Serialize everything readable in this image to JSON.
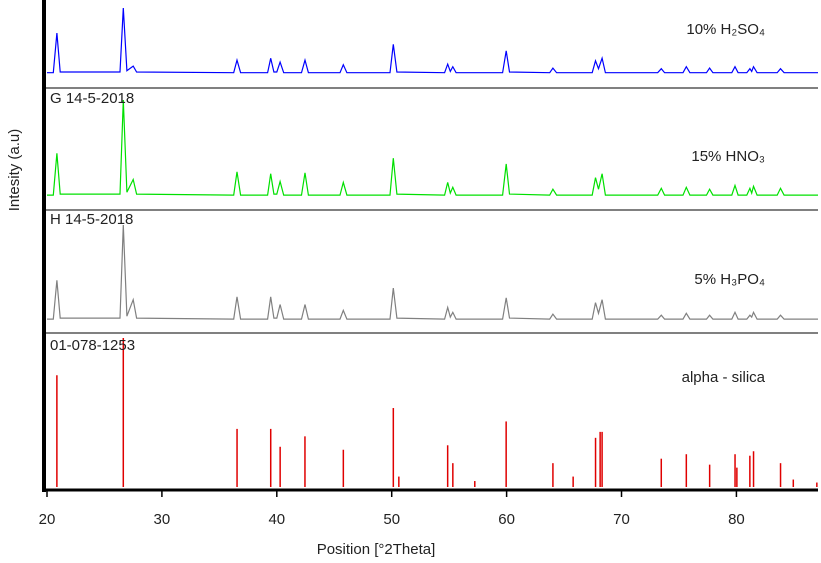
{
  "chart_data": [
    {
      "type": "line",
      "ylabel": "Intesity (a.u)",
      "xlim": [
        20,
        87.1
      ],
      "ylim": [
        0,
        100
      ],
      "x": [
        20,
        20.55,
        20.86,
        21.15,
        26.35,
        26.64,
        26.95,
        27.5,
        27.8,
        36.25,
        36.54,
        36.85,
        39.2,
        39.47,
        39.75,
        40.0,
        40.29,
        40.6,
        42.15,
        42.45,
        42.75,
        45.5,
        45.79,
        46.1,
        49.85,
        50.14,
        50.45,
        54.6,
        54.87,
        55.1,
        55.32,
        55.6,
        59.65,
        59.96,
        60.25,
        63.75,
        64.03,
        64.35,
        67.45,
        67.74,
        68.0,
        68.31,
        68.6,
        73.15,
        73.46,
        73.75,
        75.35,
        75.64,
        75.95,
        77.4,
        77.67,
        77.95,
        79.6,
        79.88,
        80.15,
        80.9,
        81.17,
        81.33,
        81.49,
        81.8,
        83.55,
        83.84,
        84.15,
        87.1
      ],
      "series": [
        {
          "name": "10% H₂SO₄",
          "color": "#0000ff",
          "values": [
            2,
            2,
            62,
            3,
            3,
            100,
            5,
            12,
            3,
            2,
            21,
            2,
            2,
            24,
            3,
            3,
            18,
            2,
            2,
            21,
            2,
            2,
            14,
            2,
            2,
            45,
            3,
            2,
            15,
            4,
            11,
            2,
            2,
            35,
            3,
            2,
            9,
            2,
            2,
            20,
            8,
            24,
            2,
            2,
            8,
            2,
            2,
            11,
            2,
            2,
            9,
            2,
            2,
            11,
            2,
            2,
            8,
            4,
            11,
            2,
            2,
            8,
            2,
            2
          ]
        }
      ]
    },
    {
      "type": "line",
      "label": "G 14-5-2018",
      "xlim": [
        20,
        87.1
      ],
      "ylim": [
        0,
        100
      ],
      "x": [
        20,
        20.55,
        20.86,
        21.15,
        26.35,
        26.64,
        26.95,
        27.5,
        27.8,
        36.25,
        36.54,
        36.85,
        39.2,
        39.47,
        39.75,
        40.0,
        40.29,
        40.6,
        42.15,
        42.45,
        42.75,
        45.5,
        45.79,
        46.1,
        49.85,
        50.14,
        50.45,
        54.6,
        54.87,
        55.1,
        55.32,
        55.6,
        59.65,
        59.96,
        60.25,
        63.75,
        64.03,
        64.35,
        67.45,
        67.74,
        68.0,
        68.31,
        68.6,
        73.15,
        73.46,
        73.75,
        75.35,
        75.64,
        75.95,
        77.4,
        77.67,
        77.95,
        79.6,
        79.88,
        80.15,
        80.9,
        81.17,
        81.33,
        81.49,
        81.8,
        83.55,
        83.84,
        84.15,
        87.1
      ],
      "series": [
        {
          "name": "15% HNO₃",
          "color": "#00e000",
          "values": [
            2,
            2,
            45,
            3,
            3,
            100,
            5,
            18,
            3,
            2,
            26,
            2,
            2,
            24,
            3,
            3,
            16,
            2,
            2,
            25,
            2,
            2,
            15,
            2,
            2,
            40,
            3,
            2,
            15,
            4,
            10,
            2,
            2,
            34,
            3,
            2,
            8,
            2,
            2,
            20,
            8,
            24,
            2,
            2,
            9,
            2,
            2,
            10,
            2,
            2,
            8,
            2,
            2,
            12,
            2,
            2,
            9,
            4,
            11,
            2,
            2,
            9,
            2,
            2
          ]
        }
      ]
    },
    {
      "type": "line",
      "label": "H 14-5-2018",
      "xlim": [
        20,
        87.1
      ],
      "ylim": [
        0,
        100
      ],
      "x": [
        20,
        20.55,
        20.86,
        21.15,
        26.35,
        26.64,
        26.95,
        27.5,
        27.8,
        36.25,
        36.54,
        36.85,
        39.2,
        39.47,
        39.75,
        40.0,
        40.29,
        40.6,
        42.15,
        42.45,
        42.75,
        45.5,
        45.79,
        46.1,
        49.85,
        50.14,
        50.45,
        54.6,
        54.87,
        55.1,
        55.32,
        55.6,
        59.65,
        59.96,
        60.25,
        63.75,
        64.03,
        64.35,
        67.45,
        67.74,
        68.0,
        68.31,
        68.6,
        73.15,
        73.46,
        73.75,
        75.35,
        75.64,
        75.95,
        77.4,
        77.67,
        77.95,
        79.6,
        79.88,
        80.15,
        80.9,
        81.17,
        81.33,
        81.49,
        81.8,
        83.55,
        83.84,
        84.15,
        87.1
      ],
      "series": [
        {
          "name": "5% H₃PO₄",
          "color": "#808080",
          "values": [
            3,
            3,
            43,
            4,
            4,
            100,
            6,
            23,
            4,
            3,
            26,
            3,
            3,
            26,
            4,
            4,
            18,
            3,
            3,
            18,
            3,
            3,
            12,
            3,
            3,
            35,
            4,
            3,
            15,
            5,
            10,
            3,
            3,
            25,
            4,
            3,
            8,
            3,
            3,
            20,
            9,
            23,
            3,
            3,
            7,
            3,
            3,
            9,
            3,
            3,
            7,
            3,
            3,
            10,
            3,
            3,
            7,
            5,
            10,
            3,
            3,
            7,
            3,
            3
          ]
        }
      ]
    },
    {
      "type": "bar",
      "label": "01-078-1253",
      "xlabel": "Position [°2Theta]",
      "xlim": [
        20,
        87.1
      ],
      "ylim": [
        0,
        100
      ],
      "xticks": [
        20,
        30,
        40,
        50,
        60,
        70,
        80
      ],
      "x": [
        20.86,
        26.64,
        36.54,
        39.47,
        40.29,
        42.45,
        45.79,
        50.14,
        50.62,
        54.87,
        55.32,
        57.23,
        59.96,
        64.03,
        65.79,
        67.74,
        68.14,
        68.31,
        73.46,
        75.64,
        77.67,
        79.88,
        80.04,
        81.17,
        81.49,
        83.84,
        84.95,
        87.0
      ],
      "series": [
        {
          "name": "alpha - silica",
          "color": "#e00000",
          "values": [
            75,
            100,
            39,
            39,
            27,
            34,
            25,
            53,
            7,
            28,
            16,
            4,
            44,
            16,
            7,
            33,
            37,
            37,
            19,
            22,
            15,
            22,
            13,
            21,
            24,
            16,
            5,
            3
          ]
        }
      ]
    }
  ]
}
